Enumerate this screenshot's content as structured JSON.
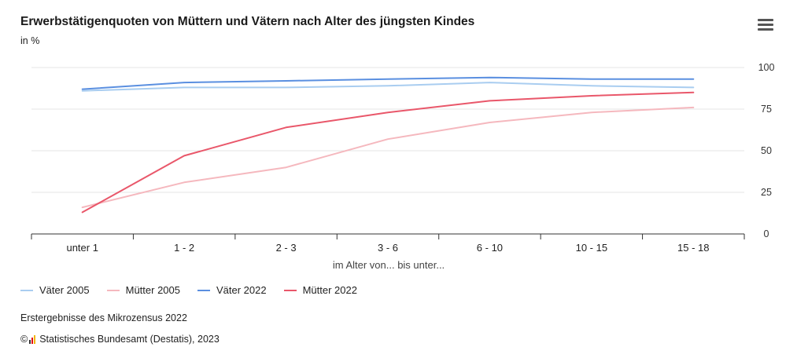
{
  "header": {
    "title": "Erwerbstätigenquoten von Müttern und Vätern nach Alter des jüngsten Kindes",
    "subtitle": "in %",
    "menu_icon": "hamburger-menu-icon"
  },
  "chart_data": {
    "type": "line",
    "title": "Erwerbstätigenquoten von Müttern und Vätern nach Alter des jüngsten Kindes",
    "subtitle": "in %",
    "xlabel": "im Alter von... bis unter...",
    "ylabel": "",
    "categories": [
      "unter 1",
      "1 - 2",
      "2 - 3",
      "3 - 6",
      "6 - 10",
      "10 - 15",
      "15 - 18"
    ],
    "ylim": [
      0,
      100
    ],
    "yticks": [
      0,
      25,
      50,
      75,
      100
    ],
    "grid": true,
    "legend_position": "bottom-left",
    "series": [
      {
        "name": "Väter 2005",
        "color": "#a9cdf0",
        "values": [
          86,
          88,
          88,
          89,
          91,
          89,
          88
        ]
      },
      {
        "name": "Mütter 2005",
        "color": "#f5b8be",
        "values": [
          16,
          31,
          40,
          57,
          67,
          73,
          76
        ]
      },
      {
        "name": "Väter 2022",
        "color": "#5a8fe0",
        "values": [
          87,
          91,
          92,
          93,
          94,
          93,
          93
        ]
      },
      {
        "name": "Mütter 2022",
        "color": "#e9576a",
        "values": [
          13,
          47,
          64,
          73,
          80,
          83,
          85
        ]
      }
    ]
  },
  "footer": {
    "source": "Erstergebnisse des Mikrozensus 2022",
    "copyright_symbol": "©",
    "credit": "Statistisches Bundesamt (Destatis), 2023"
  }
}
